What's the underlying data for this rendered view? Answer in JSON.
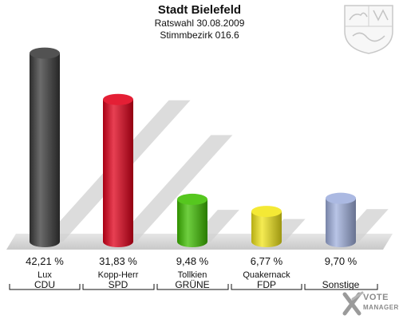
{
  "header": {
    "title": "Stadt Bielefeld",
    "subtitle1": "Ratswahl 30.08.2009",
    "subtitle2": "Stimmbezirk 016.6"
  },
  "chart_data": {
    "type": "bar",
    "categories": [
      "CDU",
      "SPD",
      "GRÜNE",
      "FDP",
      "Sonstige"
    ],
    "candidates": [
      "Lux",
      "Kopp-Herr",
      "Tollkien",
      "Quakernack",
      ""
    ],
    "values": [
      42.21,
      31.83,
      9.48,
      6.77,
      9.7
    ],
    "value_labels": [
      "42,21 %",
      "31,83 %",
      "9,48 %",
      "6,77 %",
      "9,70 %"
    ],
    "colors": [
      "#3a3a3a",
      "#e0001a",
      "#3fbf00",
      "#f2e61a",
      "#a0b0de"
    ],
    "ylim": [
      0,
      45
    ]
  },
  "branding": {
    "watermark_line1": "VOTE",
    "watermark_line2": "MANAGER",
    "crest_icon": "nrw-coat-of-arms-icon"
  }
}
